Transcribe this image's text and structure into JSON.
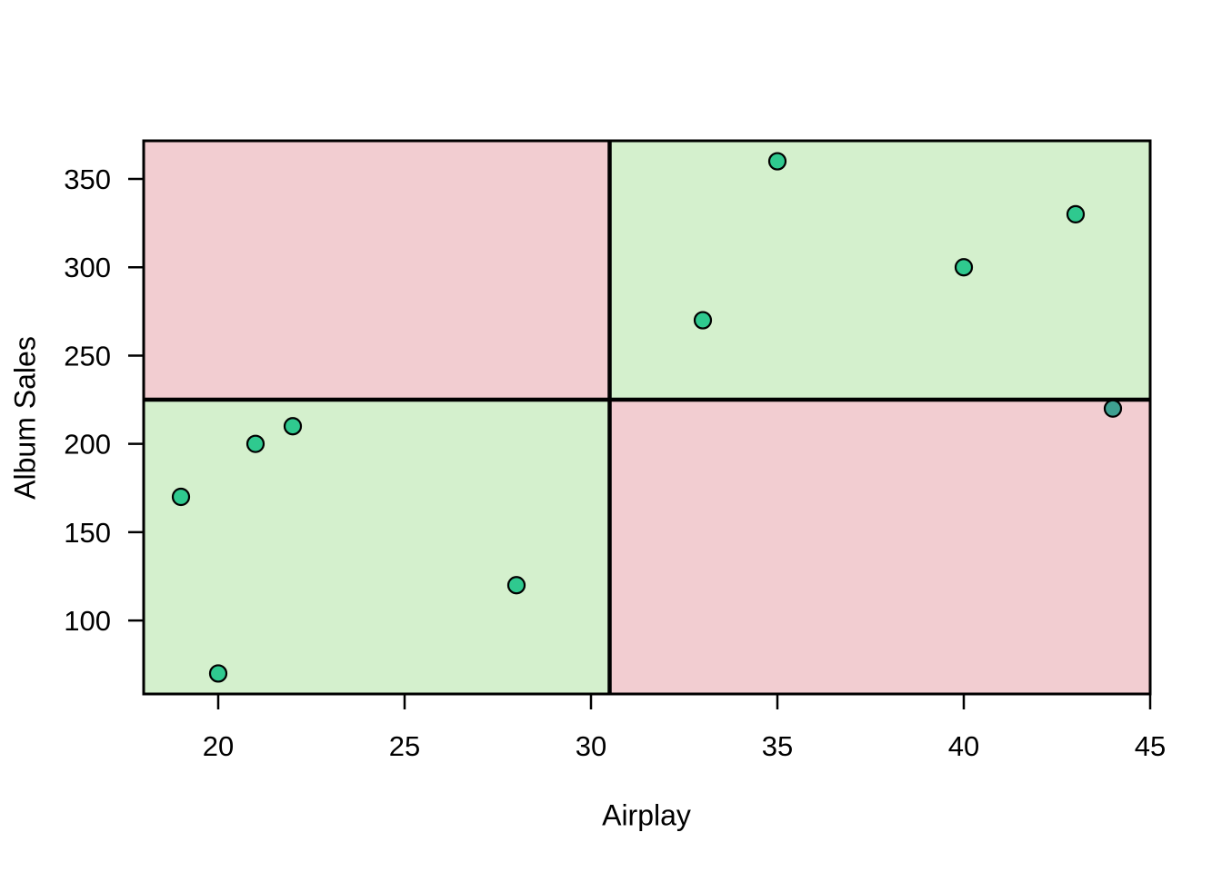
{
  "chart_data": {
    "type": "scatter",
    "title": "",
    "xlabel": "Airplay",
    "ylabel": "Album Sales",
    "xlim": [
      18,
      45
    ],
    "ylim": [
      58.4,
      371.6
    ],
    "x_ticks": [
      20,
      25,
      30,
      35,
      40,
      45
    ],
    "y_ticks": [
      100,
      150,
      200,
      250,
      300,
      350
    ],
    "grid": false,
    "legend_position": "none",
    "points": [
      {
        "x": 19,
        "y": 170
      },
      {
        "x": 20,
        "y": 70
      },
      {
        "x": 21,
        "y": 200
      },
      {
        "x": 22,
        "y": 210
      },
      {
        "x": 28,
        "y": 120
      },
      {
        "x": 33,
        "y": 270
      },
      {
        "x": 35,
        "y": 360
      },
      {
        "x": 40,
        "y": 300
      },
      {
        "x": 43,
        "y": 330
      },
      {
        "x": 44,
        "y": 220,
        "fill": "#3EA091"
      }
    ],
    "quadrants": {
      "x_divider": 30.5,
      "y_divider": 225,
      "top_left_color": "#F2CDD1",
      "top_right_color": "#D4F0CD",
      "bottom_left_color": "#D4F0CD",
      "bottom_right_color": "#F2CDD1"
    },
    "point_style": {
      "fill": "#2FC98F",
      "stroke": "#000000",
      "radius": 9
    },
    "colors": {
      "border": "#000000",
      "divider": "#000000",
      "tick": "#000000",
      "tick_label": "#000000",
      "background": "#FFFFFF"
    }
  }
}
